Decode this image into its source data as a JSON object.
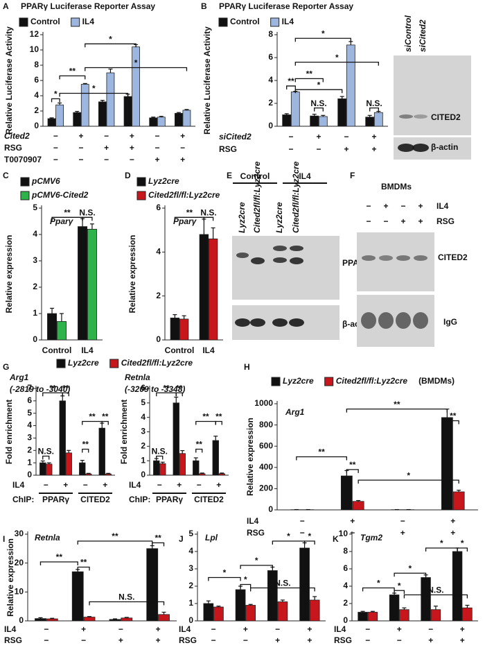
{
  "chart_data": [
    {
      "type": "bar",
      "panel": "A",
      "title": "PPARγ Luciferase Reporter Assay",
      "ylabel": "Relative  Luciferase Activity",
      "ylim": [
        0,
        12
      ],
      "yticks": [
        0,
        2,
        4,
        6,
        8,
        10,
        12
      ],
      "series": [
        {
          "name": "Control",
          "color": "#111111",
          "values": [
            1.0,
            1.8,
            3.2,
            3.9,
            1.1,
            1.7
          ],
          "errors": [
            0.1,
            0.15,
            0.2,
            0.3,
            0.1,
            0.1
          ]
        },
        {
          "name": "IL4",
          "color": "#9db6e0",
          "values": [
            2.8,
            5.5,
            7.0,
            10.4,
            1.2,
            2.1
          ],
          "errors": [
            0.25,
            0.1,
            0.5,
            0.3,
            0.1,
            0.1
          ]
        }
      ],
      "rows": [
        {
          "label": "Cited2",
          "values": [
            "−",
            "+",
            "−",
            "+",
            "−",
            "+"
          ]
        },
        {
          "label": "RSG",
          "values": [
            "−",
            "−",
            "+",
            "+",
            "−",
            "−"
          ]
        },
        {
          "label": "T0070907",
          "values": [
            "−",
            "−",
            "−",
            "−",
            "+",
            "+"
          ]
        }
      ],
      "significance": [
        "*",
        "**",
        "*",
        "*",
        "*"
      ]
    },
    {
      "type": "bar",
      "panel": "B",
      "title": "PPARγ Luciferase Reporter Assay",
      "ylabel": "Relative  Luciferase Activity",
      "ylim": [
        0,
        8
      ],
      "yticks": [
        0,
        2,
        4,
        6,
        8
      ],
      "series": [
        {
          "name": "Control",
          "color": "#111111",
          "values": [
            1.0,
            0.9,
            2.4,
            0.8
          ],
          "errors": [
            0.1,
            0.15,
            0.2,
            0.15
          ]
        },
        {
          "name": "IL4",
          "color": "#9db6e0",
          "values": [
            3.0,
            0.85,
            7.1,
            1.2
          ],
          "errors": [
            0.05,
            0.1,
            0.3,
            0.1
          ]
        }
      ],
      "rows": [
        {
          "label": "siCited2",
          "values": [
            "−",
            "+",
            "−",
            "+"
          ]
        },
        {
          "label": "RSG",
          "values": [
            "−",
            "−",
            "+",
            "+"
          ]
        }
      ],
      "significance": [
        "**",
        "N.S.",
        "**",
        "*",
        "*",
        "*",
        "N.S."
      ]
    },
    {
      "type": "bar",
      "panel": "C",
      "ylabel": "Relative  expression",
      "gene": "Pparγ",
      "ylim": [
        0,
        5
      ],
      "yticks": [
        0,
        1,
        2,
        3,
        4,
        5
      ],
      "categories": [
        "Control",
        "IL4"
      ],
      "series": [
        {
          "name": "pCMV6",
          "color": "#111111",
          "values": [
            1.0,
            4.3
          ],
          "errors": [
            0.2,
            0.3
          ]
        },
        {
          "name": "pCMV6-Cited2",
          "color": "#2db34a",
          "values": [
            0.7,
            4.2
          ],
          "errors": [
            0.3,
            0.2
          ]
        }
      ],
      "significance": [
        "**",
        "N.S."
      ]
    },
    {
      "type": "bar",
      "panel": "D",
      "ylabel": "Relative  expression",
      "gene": "Pparγ",
      "ylim": [
        0,
        6
      ],
      "yticks": [
        0,
        2,
        4,
        6
      ],
      "categories": [
        "Control",
        "IL4"
      ],
      "series": [
        {
          "name": "Lyz2cre",
          "color": "#111111",
          "values": [
            1.0,
            4.8
          ],
          "errors": [
            0.15,
            0.7
          ]
        },
        {
          "name": "Cited2fl/fl:Lyz2cre",
          "color": "#c8161d",
          "values": [
            0.95,
            4.6
          ],
          "errors": [
            0.15,
            0.5
          ]
        }
      ],
      "significance": [
        "**",
        "N.S."
      ]
    },
    {
      "type": "bar",
      "panel": "G",
      "ylabel": "Fold enrichment",
      "gene": "Arg1",
      "subtitle": "(-2819 to -3040)",
      "ylim": [
        0,
        7
      ],
      "yticks": [
        0,
        1,
        2,
        3,
        4,
        5,
        6,
        7
      ],
      "series": [
        {
          "name": "Lyz2cre",
          "color": "#111111",
          "values": [
            1.0,
            6.0,
            1.0,
            3.8
          ],
          "errors": [
            0.15,
            0.4,
            0.2,
            0.4
          ]
        },
        {
          "name": "Cited2fl/fl:Lyz2cre",
          "color": "#c8161d",
          "values": [
            0.9,
            1.8,
            0.1,
            0.1
          ],
          "errors": [
            0.1,
            0.2,
            0.05,
            0.05
          ]
        }
      ],
      "rows": [
        {
          "label": "IL4",
          "values": [
            "−",
            "+",
            "−",
            "+"
          ]
        }
      ],
      "chip": {
        "label": "ChIP:",
        "targets": [
          "PPARγ",
          "CITED2"
        ]
      },
      "significance": [
        "N.S.",
        "**",
        "**",
        "**",
        "**",
        "**"
      ]
    },
    {
      "type": "bar",
      "ylabel": "Fold enrichment",
      "gene": "Retnla",
      "subtitle": "(-3209 to -3348)",
      "ylim": [
        0,
        6
      ],
      "yticks": [
        0,
        1,
        2,
        3,
        4,
        5,
        6
      ],
      "series": [
        {
          "color": "#111111",
          "values": [
            1.0,
            5.0,
            1.0,
            2.4
          ],
          "errors": [
            0.15,
            0.4,
            0.2,
            0.3
          ]
        },
        {
          "color": "#c8161d",
          "values": [
            0.8,
            1.5,
            0.1,
            0.1
          ],
          "errors": [
            0.1,
            0.2,
            0.05,
            0.05
          ]
        }
      ],
      "rows": [
        {
          "label": "IL4",
          "values": [
            "−",
            "+",
            "−",
            "+"
          ]
        }
      ],
      "chip": {
        "label": "ChIP:",
        "targets": [
          "PPARγ",
          "CITED2"
        ]
      },
      "significance": [
        "N.S.",
        "**",
        "**",
        "**",
        "**",
        "**"
      ]
    },
    {
      "type": "bar",
      "panel": "H",
      "ylabel": "Relative expression",
      "gene": "Arg1",
      "legend_note": "(BMDMs)",
      "ylim": [
        0,
        1000
      ],
      "yticks": [
        0,
        200,
        400,
        600,
        800,
        1000
      ],
      "series": [
        {
          "name": "Lyz2cre",
          "color": "#111111",
          "values": [
            2,
            320,
            2,
            870
          ],
          "errors": [
            1,
            50,
            1,
            80
          ]
        },
        {
          "name": "Cited2fl/fl:Lyz2cre",
          "color": "#c8161d",
          "values": [
            2,
            80,
            2,
            170
          ],
          "errors": [
            1,
            8,
            1,
            15
          ]
        }
      ],
      "rows": [
        {
          "label": "IL4",
          "values": [
            "−",
            "+",
            "−",
            "+"
          ]
        },
        {
          "label": "RSG",
          "values": [
            "−",
            "−",
            "+",
            "+"
          ]
        }
      ],
      "significance": [
        "**",
        "**",
        "**",
        "**",
        "*"
      ]
    },
    {
      "type": "bar",
      "panel": "I",
      "ylabel": "Relative expression",
      "gene": "Retnla",
      "ylim": [
        0,
        30
      ],
      "yticks": [
        0,
        10,
        20,
        30
      ],
      "series": [
        {
          "color": "#111111",
          "values": [
            0.8,
            17,
            0.5,
            25
          ],
          "errors": [
            0.3,
            0.8,
            0.2,
            1.0
          ]
        },
        {
          "color": "#c8161d",
          "values": [
            0.7,
            1.3,
            1.0,
            2.2
          ],
          "errors": [
            0.2,
            0.2,
            0.2,
            0.8
          ]
        }
      ],
      "rows": [
        {
          "label": "IL4",
          "values": [
            "−",
            "+",
            "−",
            "+"
          ]
        },
        {
          "label": "RSG",
          "values": [
            "−",
            "−",
            "+",
            "+"
          ]
        }
      ],
      "significance": [
        "**",
        "**",
        "**",
        "**",
        "N.S."
      ]
    },
    {
      "type": "bar",
      "panel": "J",
      "gene": "Lpl",
      "ylim": [
        0,
        5
      ],
      "yticks": [
        0,
        1,
        2,
        3,
        4,
        5
      ],
      "series": [
        {
          "color": "#111111",
          "values": [
            1.0,
            1.8,
            2.9,
            4.2
          ],
          "errors": [
            0.15,
            0.2,
            0.2,
            0.3
          ]
        },
        {
          "color": "#c8161d",
          "values": [
            0.8,
            0.9,
            1.1,
            1.2
          ],
          "errors": [
            0.05,
            0.05,
            0.1,
            0.2
          ]
        }
      ],
      "rows": [
        {
          "label": "IL4",
          "values": [
            "−",
            "+",
            "−",
            "+"
          ]
        },
        {
          "label": "RSG",
          "values": [
            "−",
            "−",
            "+",
            "+"
          ]
        }
      ],
      "significance": [
        "*",
        "*",
        "*",
        "*",
        "*",
        "N.S."
      ]
    },
    {
      "type": "bar",
      "panel": "K",
      "gene": "Tgm2",
      "ylim": [
        0,
        10
      ],
      "yticks": [
        0,
        2,
        4,
        6,
        8,
        10
      ],
      "series": [
        {
          "color": "#111111",
          "values": [
            1.0,
            3.0,
            5.0,
            8.0
          ],
          "errors": [
            0.1,
            0.2,
            0.3,
            0.4
          ]
        },
        {
          "color": "#c8161d",
          "values": [
            1.0,
            1.3,
            1.3,
            1.5
          ],
          "errors": [
            0.1,
            0.2,
            0.4,
            0.3
          ]
        }
      ],
      "rows": [
        {
          "label": "IL4",
          "values": [
            "−",
            "+",
            "−",
            "+"
          ]
        },
        {
          "label": "RSG",
          "values": [
            "−",
            "−",
            "+",
            "+"
          ]
        }
      ],
      "significance": [
        "*",
        "*",
        "*",
        "*",
        "*",
        "N.S."
      ]
    }
  ],
  "blots": [
    {
      "lanes": [
        "siControl",
        "siCited2"
      ],
      "bands": [
        "CITED2",
        "β-actin"
      ]
    },
    {
      "panel": "E",
      "groups": [
        "Control",
        "IL4"
      ],
      "lanes": [
        "Lyz2cre",
        "Cited2fl/fl:Lyz2cre",
        "Lyz2cre",
        "Cited2fl/fl:Lyz2cre"
      ],
      "bands": [
        "PPARγ",
        "β-actin"
      ]
    },
    {
      "panel": "F",
      "title": "BMDMs",
      "rows": [
        {
          "label": "IL4",
          "values": [
            "−",
            "+",
            "−",
            "+"
          ]
        },
        {
          "label": "RSG",
          "values": [
            "−",
            "−",
            "+",
            "+"
          ]
        }
      ],
      "bands": [
        "CITED2",
        "IgG"
      ]
    }
  ]
}
